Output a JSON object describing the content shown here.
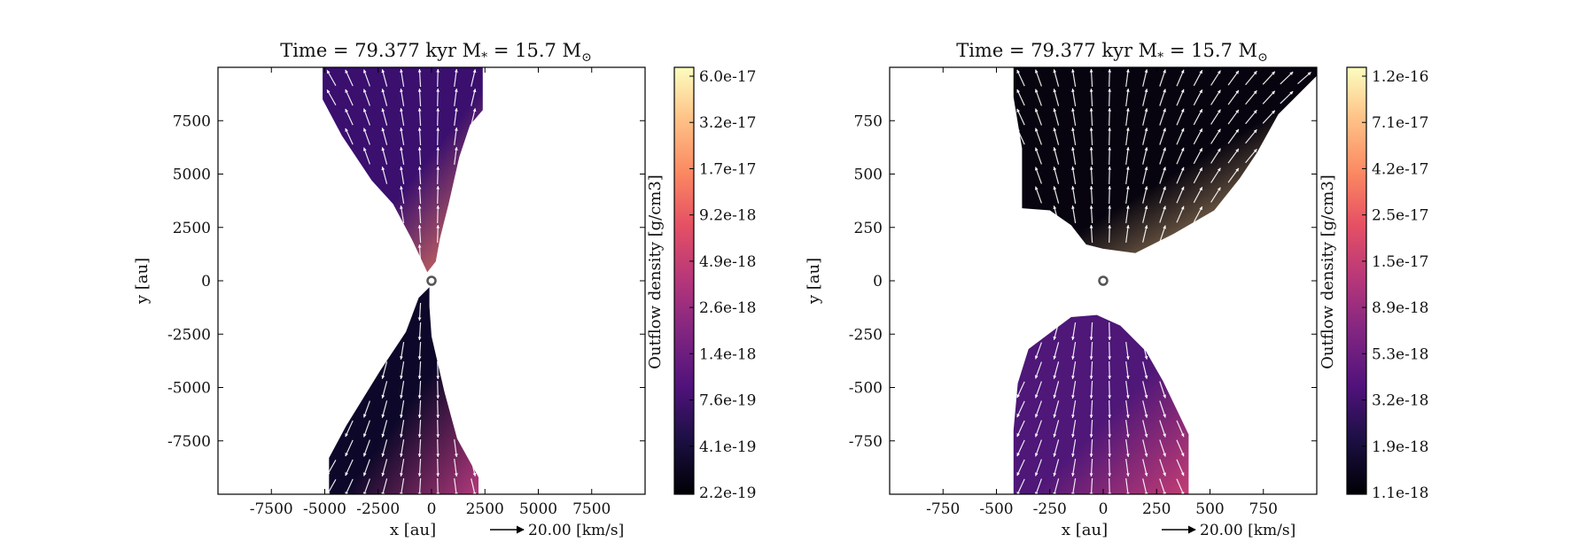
{
  "chart_data": [
    {
      "type": "heatmap",
      "title": "Time = 79.377 kyr    M",
      "title_sub": "*",
      "title_mid": " = 15.7 M",
      "title_sun": "⊙",
      "xlabel": "x [au]",
      "ylabel": "y [au]",
      "xlim": [
        -10000,
        10000
      ],
      "ylim": [
        -10000,
        10000
      ],
      "xticks": [
        -7500,
        -5000,
        -2500,
        0,
        2500,
        5000,
        7500
      ],
      "yticks": [
        -7500,
        -5000,
        -2500,
        0,
        2500,
        5000,
        7500
      ],
      "quiver_key": "20.00 [km/s]",
      "colorbar": {
        "label": "Outflow density [g/cm3]",
        "scale": "log",
        "colormap": "magma",
        "ticks": [
          "2.2e-19",
          "4.1e-19",
          "7.6e-19",
          "1.4e-18",
          "2.6e-18",
          "4.9e-18",
          "9.2e-18",
          "1.7e-17",
          "3.2e-17",
          "6.0e-17"
        ]
      },
      "regions": [
        {
          "name": "upper-outflow",
          "polygon": [
            [
              -5100,
              10000
            ],
            [
              2400,
              10000
            ],
            [
              2400,
              8000
            ],
            [
              1800,
              7300
            ],
            [
              1300,
              5800
            ],
            [
              800,
              3600
            ],
            [
              400,
              2000
            ],
            [
              200,
              900
            ],
            [
              -200,
              400
            ],
            [
              -900,
              1900
            ],
            [
              -1800,
              3600
            ],
            [
              -2800,
              4700
            ],
            [
              -4200,
              6800
            ],
            [
              -5100,
              8500
            ]
          ],
          "color_low": "#3a0f6e",
          "color_high": "#f8845a"
        },
        {
          "name": "lower-outflow",
          "polygon": [
            [
              -100,
              -300
            ],
            [
              -600,
              -800
            ],
            [
              -1200,
              -2400
            ],
            [
              -2400,
              -4200
            ],
            [
              -4000,
              -6800
            ],
            [
              -4800,
              -8300
            ],
            [
              -4800,
              -10000
            ],
            [
              2200,
              -10000
            ],
            [
              2200,
              -9200
            ],
            [
              1200,
              -7400
            ],
            [
              600,
              -5200
            ],
            [
              0,
              -2600
            ],
            [
              -100,
              -1200
            ]
          ],
          "color_low": "#0d0829",
          "color_high": "#b1397c"
        }
      ]
    },
    {
      "type": "heatmap",
      "title": "Time = 79.377 kyr    M",
      "title_sub": "*",
      "title_mid": " = 15.7 M",
      "title_sun": "⊙",
      "xlabel": "x [au]",
      "ylabel": "y [au]",
      "xlim": [
        -1000,
        1000
      ],
      "ylim": [
        -1000,
        1000
      ],
      "xticks": [
        -750,
        -500,
        -250,
        0,
        250,
        500,
        750
      ],
      "yticks": [
        -750,
        -500,
        -250,
        0,
        250,
        500,
        750
      ],
      "quiver_key": "20.00 [km/s]",
      "colorbar": {
        "label": "Outflow density [g/cm3]",
        "scale": "log",
        "colormap": "magma",
        "ticks": [
          "1.1e-18",
          "1.9e-18",
          "3.2e-18",
          "5.3e-18",
          "8.9e-18",
          "1.5e-17",
          "2.5e-17",
          "4.2e-17",
          "7.1e-17",
          "1.2e-16"
        ]
      },
      "regions": [
        {
          "name": "upper-outflow",
          "polygon": [
            [
              -420,
              1000
            ],
            [
              1000,
              1000
            ],
            [
              1000,
              960
            ],
            [
              820,
              780
            ],
            [
              720,
              600
            ],
            [
              640,
              480
            ],
            [
              520,
              330
            ],
            [
              330,
              220
            ],
            [
              150,
              130
            ],
            [
              0,
              150
            ],
            [
              -80,
              170
            ],
            [
              -150,
              260
            ],
            [
              -250,
              330
            ],
            [
              -380,
              340
            ],
            [
              -380,
              620
            ],
            [
              -420,
              860
            ]
          ],
          "color_low": "#07040f",
          "color_high": "#fdcf8c"
        },
        {
          "name": "lower-outflow",
          "polygon": [
            [
              -150,
              -170
            ],
            [
              -230,
              -230
            ],
            [
              -350,
              -320
            ],
            [
              -400,
              -480
            ],
            [
              -420,
              -700
            ],
            [
              -420,
              -1000
            ],
            [
              400,
              -1000
            ],
            [
              400,
              -720
            ],
            [
              280,
              -470
            ],
            [
              200,
              -330
            ],
            [
              80,
              -210
            ],
            [
              -30,
              -160
            ]
          ],
          "color_low": "#4e1778",
          "color_high": "#c33d74"
        }
      ]
    }
  ]
}
